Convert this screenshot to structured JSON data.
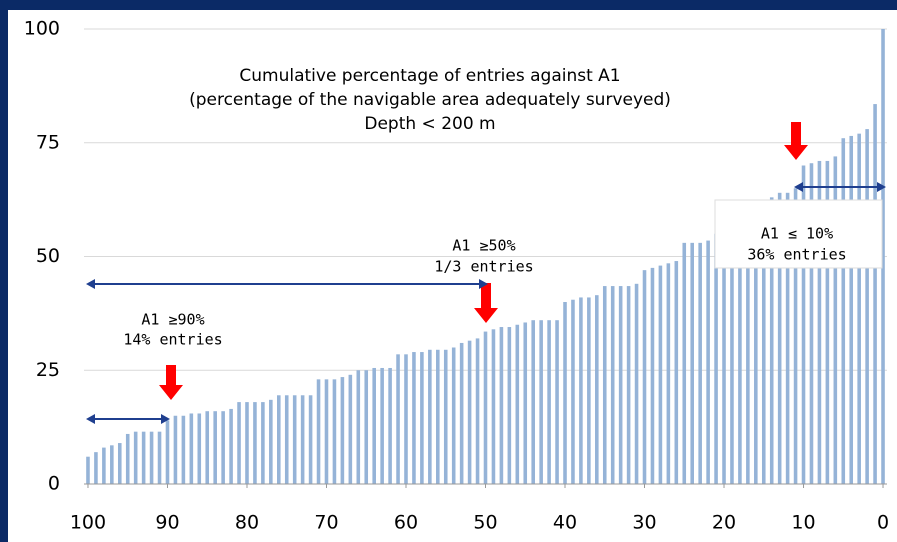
{
  "chart_data": {
    "type": "bar",
    "title": "Cumulative percentage of entries against A1",
    "subtitle": "(percentage of the navigable area adequately surveyed)",
    "note": "Depth < 200 m",
    "annotations": [
      "A1 ≥90%",
      "14% entries",
      "A1 ≥50%",
      "1/3 entries",
      "A1 ≤ 10%",
      "36% entries"
    ],
    "color": "#95b3d7",
    "x": [
      100,
      99,
      98,
      97,
      96,
      95,
      94,
      93,
      92,
      91,
      90,
      89,
      88,
      87,
      86,
      85,
      84,
      83,
      82,
      81,
      80,
      79,
      78,
      77,
      76,
      75,
      74,
      73,
      72,
      71,
      70,
      69,
      68,
      67,
      66,
      65,
      64,
      63,
      62,
      61,
      60,
      59,
      58,
      57,
      56,
      55,
      54,
      53,
      52,
      51,
      50,
      49,
      48,
      47,
      46,
      45,
      44,
      43,
      42,
      41,
      40,
      39,
      38,
      37,
      36,
      35,
      34,
      33,
      32,
      31,
      30,
      29,
      28,
      27,
      26,
      25,
      24,
      23,
      22,
      21,
      20,
      19,
      18,
      17,
      16,
      15,
      14,
      13,
      12,
      11,
      10,
      9,
      8,
      7,
      6,
      5,
      4,
      3,
      2,
      1,
      0
    ],
    "values": [
      6,
      7,
      8,
      8.5,
      9,
      11,
      11.5,
      11.5,
      11.5,
      11.5,
      14,
      15,
      15,
      15.5,
      15.5,
      16,
      16,
      16,
      16.5,
      18,
      18,
      18,
      18,
      18.5,
      19.5,
      19.5,
      19.5,
      19.5,
      19.5,
      23,
      23,
      23,
      23.5,
      24,
      25,
      25,
      25.5,
      25.5,
      25.5,
      28.5,
      28.5,
      29,
      29,
      29.5,
      29.5,
      29.5,
      30,
      31,
      31.5,
      32,
      33.5,
      34,
      34.5,
      34.5,
      35,
      35.5,
      36,
      36,
      36,
      36,
      40,
      40.5,
      41,
      41,
      41.5,
      43.5,
      43.5,
      43.5,
      43.5,
      44,
      47,
      47.5,
      48,
      48.5,
      49,
      53,
      53,
      53,
      53.5,
      55,
      56,
      57,
      58,
      59,
      60,
      61,
      63,
      64,
      64,
      65,
      70,
      70.5,
      71,
      71,
      72,
      76,
      76.5,
      77,
      78,
      83.5,
      100
    ],
    "xlim": [
      100.5,
      -0.5
    ],
    "xticks": [
      100,
      90,
      80,
      70,
      60,
      50,
      40,
      30,
      20,
      10,
      0
    ],
    "ylim": [
      0,
      100
    ],
    "yticks": [
      0,
      25,
      50,
      75,
      100
    ],
    "grid": true
  }
}
